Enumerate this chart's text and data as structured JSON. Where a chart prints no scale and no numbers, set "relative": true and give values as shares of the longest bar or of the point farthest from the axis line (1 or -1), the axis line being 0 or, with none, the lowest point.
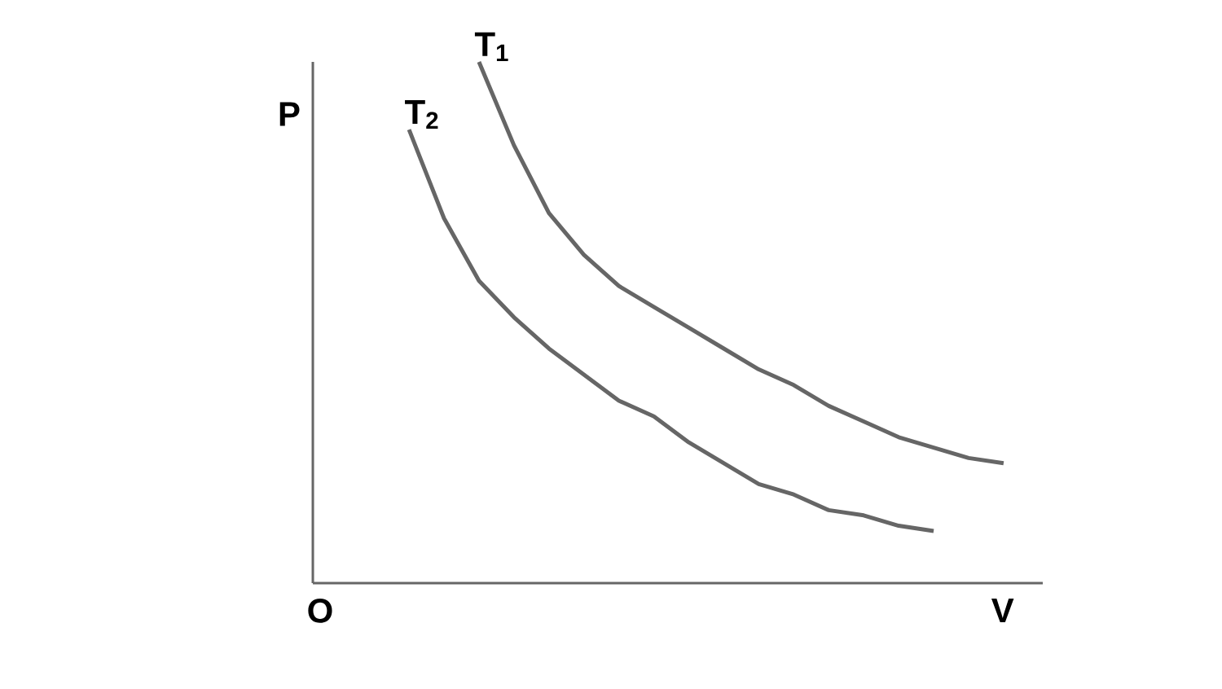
{
  "chart_data": {
    "type": "line",
    "relative": true,
    "xlabel": "V",
    "ylabel": "P",
    "annotations": [
      "O"
    ],
    "categories": [
      null,
      null,
      null,
      null,
      null,
      null,
      null,
      null,
      null,
      null,
      null,
      null,
      null,
      null,
      null,
      null,
      null,
      null
    ],
    "series": [
      {
        "name": "T$_{1}$",
        "color": "#666666",
        "values": [
          null,
          null,
          1,
          0.84,
          0.71,
          0.63,
          0.57,
          0.53,
          0.49,
          0.45,
          0.41,
          0.38,
          0.34,
          0.31,
          0.28,
          0.26,
          0.24,
          0.23
        ]
      },
      {
        "name": "T$_{2}$",
        "color": "#666666",
        "values": [
          0.87,
          0.7,
          0.58,
          0.51,
          0.45,
          0.4,
          0.35,
          0.32,
          0.27,
          0.23,
          0.19,
          0.17,
          0.14,
          0.13,
          0.11,
          0.1,
          null,
          null
        ]
      }
    ],
    "marker": "none",
    "line_style": "solid"
  }
}
